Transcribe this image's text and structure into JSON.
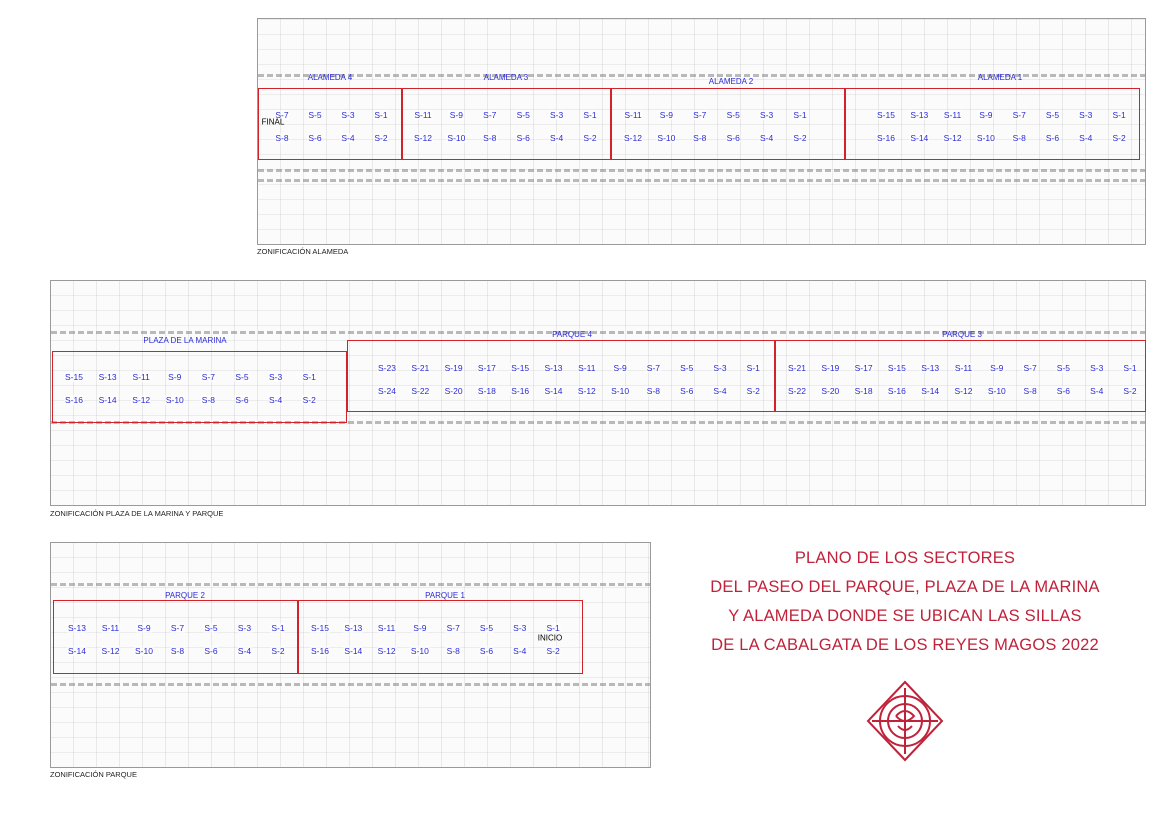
{
  "title_lines": [
    "PLANO DE LOS SECTORES",
    "DEL PASEO DEL PARQUE, PLAZA DE LA MARINA",
    "Y ALAMEDA DONDE SE UBICAN LAS SILLAS",
    "DE LA CABALGATA DE LOS REYES MAGOS 2022"
  ],
  "captions": {
    "alameda": "ZONIFICACIÓN ALAMEDA",
    "marina_parque": "ZONIFICACIÓN PLAZA DE LA MARINA Y PARQUE",
    "parque": "ZONIFICACIÓN PARQUE"
  },
  "markers": {
    "final": "FINAL",
    "inicio": "INICIO"
  },
  "colors": {
    "sector_border": "#d2232a",
    "labels": "#2b2bd8",
    "title": "#c0223a"
  },
  "logo_icon": "cofradia-seal",
  "zones": [
    {
      "name": "ALAMEDA 4",
      "top": [
        "S-7",
        "S-5",
        "S-3",
        "S-1"
      ],
      "bottom": [
        "S-8",
        "S-6",
        "S-4",
        "S-2"
      ]
    },
    {
      "name": "ALAMEDA 3",
      "top": [
        "S-11",
        "S-9",
        "S-7",
        "S-5",
        "S-3",
        "S-1"
      ],
      "bottom": [
        "S-12",
        "S-10",
        "S-8",
        "S-6",
        "S-4",
        "S-2"
      ]
    },
    {
      "name": "ALAMEDA 2",
      "top": [
        "S-11",
        "S-9",
        "S-7",
        "S-5",
        "S-3",
        "S-1"
      ],
      "bottom": [
        "S-12",
        "S-10",
        "S-8",
        "S-6",
        "S-4",
        "S-2"
      ]
    },
    {
      "name": "ALAMEDA 1",
      "top": [
        "S-15",
        "S-13",
        "S-11",
        "S-9",
        "S-7",
        "S-5",
        "S-3",
        "S-1"
      ],
      "bottom": [
        "S-16",
        "S-14",
        "S-12",
        "S-10",
        "S-8",
        "S-6",
        "S-4",
        "S-2"
      ]
    },
    {
      "name": "PLAZA DE LA MARINA",
      "top": [
        "S-15",
        "S-13",
        "S-11",
        "S-9",
        "S-7",
        "S-5",
        "S-3",
        "S-1"
      ],
      "bottom": [
        "S-16",
        "S-14",
        "S-12",
        "S-10",
        "S-8",
        "S-6",
        "S-4",
        "S-2"
      ]
    },
    {
      "name": "PARQUE 4",
      "top": [
        "S-23",
        "S-21",
        "S-19",
        "S-17",
        "S-15",
        "S-13",
        "S-11",
        "S-9",
        "S-7",
        "S-5",
        "S-3",
        "S-1"
      ],
      "bottom": [
        "S-24",
        "S-22",
        "S-20",
        "S-18",
        "S-16",
        "S-14",
        "S-12",
        "S-10",
        "S-8",
        "S-6",
        "S-4",
        "S-2"
      ]
    },
    {
      "name": "PARQUE 3",
      "top": [
        "S-21",
        "S-19",
        "S-17",
        "S-15",
        "S-13",
        "S-11",
        "S-9",
        "S-7",
        "S-5",
        "S-3",
        "S-1"
      ],
      "bottom": [
        "S-22",
        "S-20",
        "S-18",
        "S-16",
        "S-14",
        "S-12",
        "S-10",
        "S-8",
        "S-6",
        "S-4",
        "S-2"
      ]
    },
    {
      "name": "PARQUE 2",
      "top": [
        "S-13",
        "S-11",
        "S-9",
        "S-7",
        "S-5",
        "S-3",
        "S-1"
      ],
      "bottom": [
        "S-14",
        "S-12",
        "S-10",
        "S-8",
        "S-6",
        "S-4",
        "S-2"
      ]
    },
    {
      "name": "PARQUE 1",
      "top": [
        "S-15",
        "S-13",
        "S-11",
        "S-9",
        "S-7",
        "S-5",
        "S-3",
        "S-1"
      ],
      "bottom": [
        "S-16",
        "S-14",
        "S-12",
        "S-10",
        "S-8",
        "S-6",
        "S-4",
        "S-2"
      ]
    }
  ]
}
